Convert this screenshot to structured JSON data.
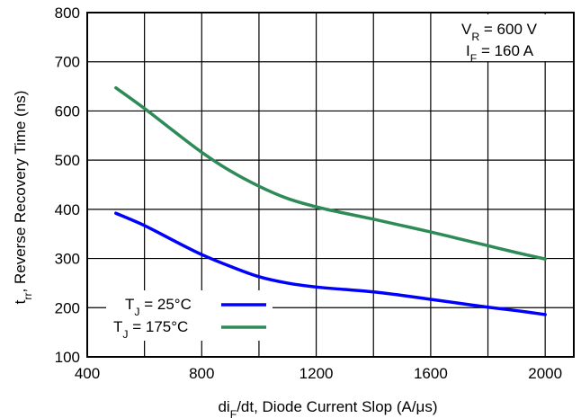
{
  "chart_data": {
    "type": "line",
    "title": "",
    "xlabel": {
      "main": "di",
      "sub": "F",
      "rest": "/dt, Diode Current Slop (A/μs)"
    },
    "ylabel": {
      "main": "t",
      "sub": "rr",
      "rest": ", Reverse Recovery Time (ns)"
    },
    "xlim": [
      400,
      2100
    ],
    "ylim": [
      100,
      800
    ],
    "xticks": [
      400,
      800,
      1200,
      1600,
      2000
    ],
    "yticks": [
      100,
      200,
      300,
      400,
      500,
      600,
      700,
      800
    ],
    "x_minor_step": 200,
    "grid": true,
    "conditions": [
      {
        "main": "V",
        "sub": "R",
        "rest": " = 600 V"
      },
      {
        "main": "I",
        "sub": "F",
        "rest": " = 160 A"
      }
    ],
    "legend_position": "bottom-left",
    "series": [
      {
        "name": {
          "main": "T",
          "sub": "J",
          "rest": " = 25°C"
        },
        "color": "#0000ff",
        "x": [
          500,
          600,
          700,
          800,
          900,
          1000,
          1100,
          1200,
          1300,
          1400,
          1500,
          1600,
          1700,
          1800,
          1900,
          2000
        ],
        "y": [
          392,
          367,
          337,
          308,
          284,
          263,
          250,
          242,
          237,
          232,
          225,
          217,
          209,
          201,
          194,
          186
        ]
      },
      {
        "name": {
          "main": "T",
          "sub": "J",
          "rest": " = 175°C"
        },
        "color": "#2e8b57",
        "x": [
          500,
          600,
          700,
          800,
          900,
          1000,
          1100,
          1200,
          1300,
          1400,
          1500,
          1600,
          1700,
          1800,
          1900,
          2000
        ],
        "y": [
          647,
          605,
          560,
          516,
          478,
          447,
          422,
          405,
          392,
          380,
          367,
          354,
          340,
          326,
          312,
          299
        ]
      }
    ]
  }
}
